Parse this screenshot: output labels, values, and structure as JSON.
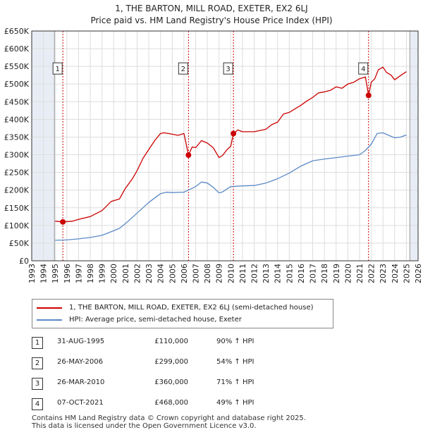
{
  "title": {
    "line1": "1, THE BARTON, MILL ROAD, EXETER, EX2 6LJ",
    "line2": "Price paid vs. HM Land Registry's House Price Index (HPI)"
  },
  "colors": {
    "property": "#cc0000",
    "hpi": "#5b8ac6",
    "vline": "#cc0000",
    "shade": "#e8edf5"
  },
  "chart_data": {
    "type": "line",
    "title": "1, THE BARTON, MILL ROAD, EXETER, EX2 6LJ — Price paid vs. HM Land Registry's House Price Index (HPI)",
    "xlim": [
      1993,
      2026
    ],
    "ylim": [
      0,
      650000
    ],
    "y_ticks": [
      0,
      50000,
      100000,
      150000,
      200000,
      250000,
      300000,
      350000,
      400000,
      450000,
      500000,
      550000,
      600000,
      650000
    ],
    "y_tick_labels": [
      "£0",
      "£50K",
      "£100K",
      "£150K",
      "£200K",
      "£250K",
      "£300K",
      "£350K",
      "£400K",
      "£450K",
      "£500K",
      "£550K",
      "£600K",
      "£650K"
    ],
    "x_tick_labels": [
      "1993",
      "1994",
      "1995",
      "1996",
      "1997",
      "1998",
      "1999",
      "2000",
      "2001",
      "2002",
      "2003",
      "2004",
      "2005",
      "2006",
      "2007",
      "2008",
      "2009",
      "2010",
      "2011",
      "2012",
      "2013",
      "2014",
      "2015",
      "2016",
      "2017",
      "2018",
      "2019",
      "2020",
      "2021",
      "2022",
      "2023",
      "2024",
      "2025",
      "2026"
    ],
    "data_range": [
      1995.0,
      2025.3
    ],
    "series": [
      {
        "name": "1, THE BARTON, MILL ROAD, EXETER, EX2 6LJ (semi-detached house)",
        "x": [
          1995.0,
          1995.66,
          1996.5,
          1997.0,
          1998.0,
          1999.0,
          1999.8,
          2000.5,
          2001.0,
          2001.6,
          2002.0,
          2002.5,
          2003.0,
          2003.5,
          2004.0,
          2004.3,
          2005.0,
          2005.5,
          2006.0,
          2006.39,
          2006.7,
          2007.0,
          2007.5,
          2008.0,
          2008.5,
          2009.0,
          2009.3,
          2009.7,
          2010.0,
          2010.23,
          2010.6,
          2011.0,
          2012.0,
          2013.0,
          2013.5,
          2014.0,
          2014.5,
          2015.0,
          2016.0,
          2016.5,
          2017.0,
          2017.5,
          2018.0,
          2018.5,
          2019.0,
          2019.5,
          2020.0,
          2020.5,
          2021.0,
          2021.5,
          2021.77,
          2022.0,
          2022.3,
          2022.6,
          2023.0,
          2023.3,
          2023.7,
          2024.0,
          2024.5,
          2025.0
        ],
        "values": [
          112000,
          110000,
          112000,
          117000,
          125000,
          142000,
          168000,
          175000,
          205000,
          232000,
          255000,
          290000,
          315000,
          340000,
          360000,
          362000,
          358000,
          355000,
          360000,
          299000,
          322000,
          320000,
          340000,
          333000,
          320000,
          292000,
          298000,
          315000,
          324000,
          360000,
          370000,
          365000,
          365000,
          372000,
          385000,
          392000,
          415000,
          420000,
          440000,
          452000,
          462000,
          475000,
          478000,
          482000,
          492000,
          488000,
          500000,
          505000,
          515000,
          520000,
          468000,
          505000,
          515000,
          540000,
          548000,
          533000,
          525000,
          512000,
          524000,
          535000
        ]
      },
      {
        "name": "HPI: Average price, semi-detached house, Exeter",
        "x": [
          1995.0,
          1996.0,
          1997.0,
          1998.0,
          1999.0,
          2000.0,
          2000.5,
          2001.0,
          2002.0,
          2003.0,
          2004.0,
          2004.5,
          2005.0,
          2006.0,
          2007.0,
          2007.5,
          2008.0,
          2008.5,
          2009.0,
          2009.3,
          2010.0,
          2011.0,
          2012.0,
          2013.0,
          2014.0,
          2015.0,
          2016.0,
          2017.0,
          2018.0,
          2019.0,
          2020.0,
          2021.0,
          2021.5,
          2022.0,
          2022.5,
          2023.0,
          2023.5,
          2024.0,
          2024.5,
          2025.0
        ],
        "values": [
          58000,
          59000,
          62000,
          66000,
          72000,
          85000,
          92000,
          105000,
          135000,
          165000,
          190000,
          194000,
          193000,
          194000,
          210000,
          223000,
          220000,
          208000,
          192000,
          195000,
          210000,
          212000,
          213000,
          220000,
          232000,
          248000,
          268000,
          283000,
          288000,
          292000,
          296000,
          300000,
          312000,
          330000,
          360000,
          362000,
          355000,
          348000,
          350000,
          356000
        ]
      }
    ],
    "annotations": [
      {
        "label": "1",
        "x": 1995.66,
        "value": 110000
      },
      {
        "label": "2",
        "x": 2006.39,
        "value": 299000
      },
      {
        "label": "3",
        "x": 2010.23,
        "value": 360000
      },
      {
        "label": "4",
        "x": 2021.77,
        "value": 468000
      }
    ]
  },
  "legend": {
    "property_label": "1, THE BARTON, MILL ROAD, EXETER, EX2 6LJ (semi-detached house)",
    "hpi_label": "HPI: Average price, semi-detached house, Exeter"
  },
  "sales": [
    {
      "num": "1",
      "date": "31-AUG-1995",
      "price": "£110,000",
      "hpi": "90% ↑ HPI"
    },
    {
      "num": "2",
      "date": "26-MAY-2006",
      "price": "£299,000",
      "hpi": "54% ↑ HPI"
    },
    {
      "num": "3",
      "date": "26-MAR-2010",
      "price": "£360,000",
      "hpi": "71% ↑ HPI"
    },
    {
      "num": "4",
      "date": "07-OCT-2021",
      "price": "£468,000",
      "hpi": "49% ↑ HPI"
    }
  ],
  "footer": {
    "line1": "Contains HM Land Registry data © Crown copyright and database right 2025.",
    "line2": "This data is licensed under the Open Government Licence v3.0."
  }
}
